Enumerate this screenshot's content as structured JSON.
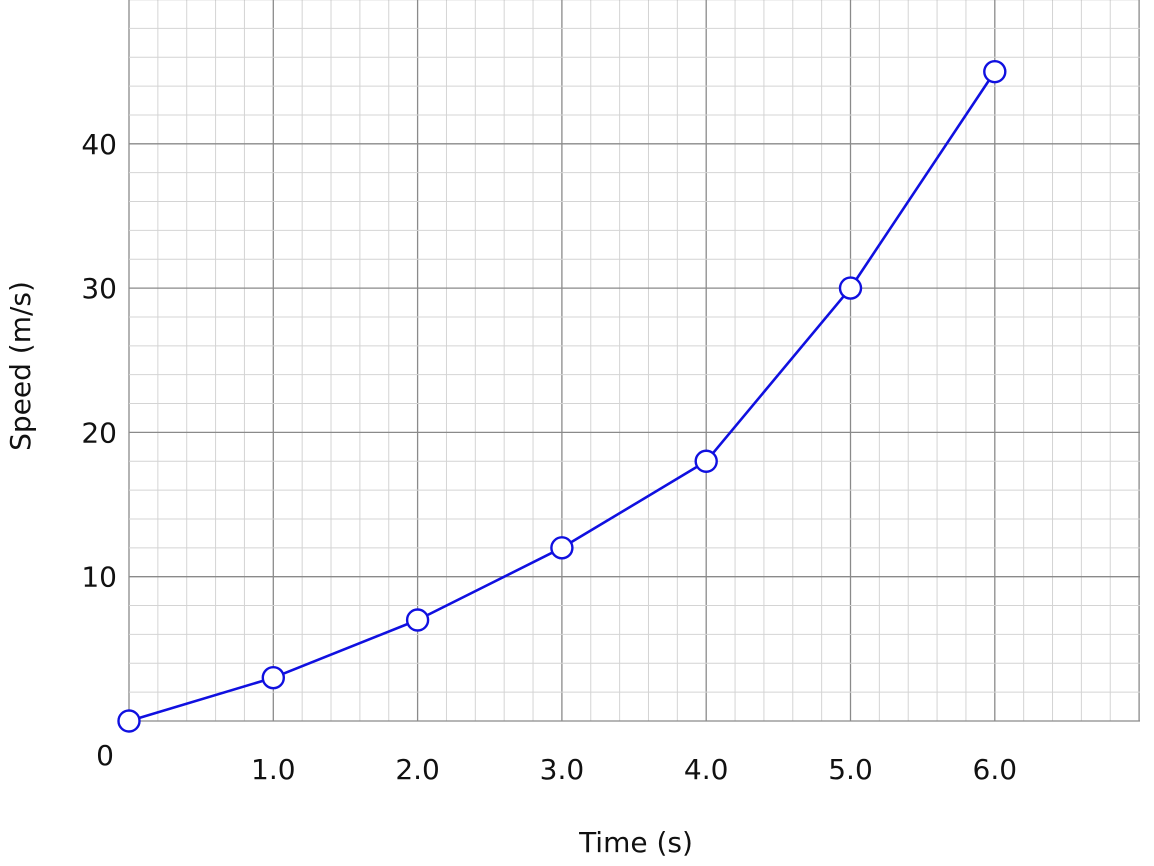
{
  "chart_data": {
    "type": "line",
    "xlabel": "Time (s)",
    "ylabel": "Speed (m/s)",
    "xlim": [
      0,
      7
    ],
    "ylim": [
      0,
      50
    ],
    "x_ticks": [
      1,
      2,
      3,
      4,
      5,
      6
    ],
    "x_tick_labels": [
      "1.0",
      "2.0",
      "3.0",
      "4.0",
      "5.0",
      "6.0"
    ],
    "y_ticks": [
      10,
      20,
      30,
      40
    ],
    "y_tick_labels": [
      "10",
      "20",
      "30",
      "40"
    ],
    "origin_label": "0",
    "grid": true,
    "minor_grid_divisions": 5,
    "series": [
      {
        "x": [
          0,
          1,
          2,
          3,
          4,
          5,
          6
        ],
        "y": [
          0,
          3,
          7,
          12,
          18,
          30,
          45
        ],
        "color": "#1010e0",
        "marker": "open-circle"
      }
    ]
  }
}
